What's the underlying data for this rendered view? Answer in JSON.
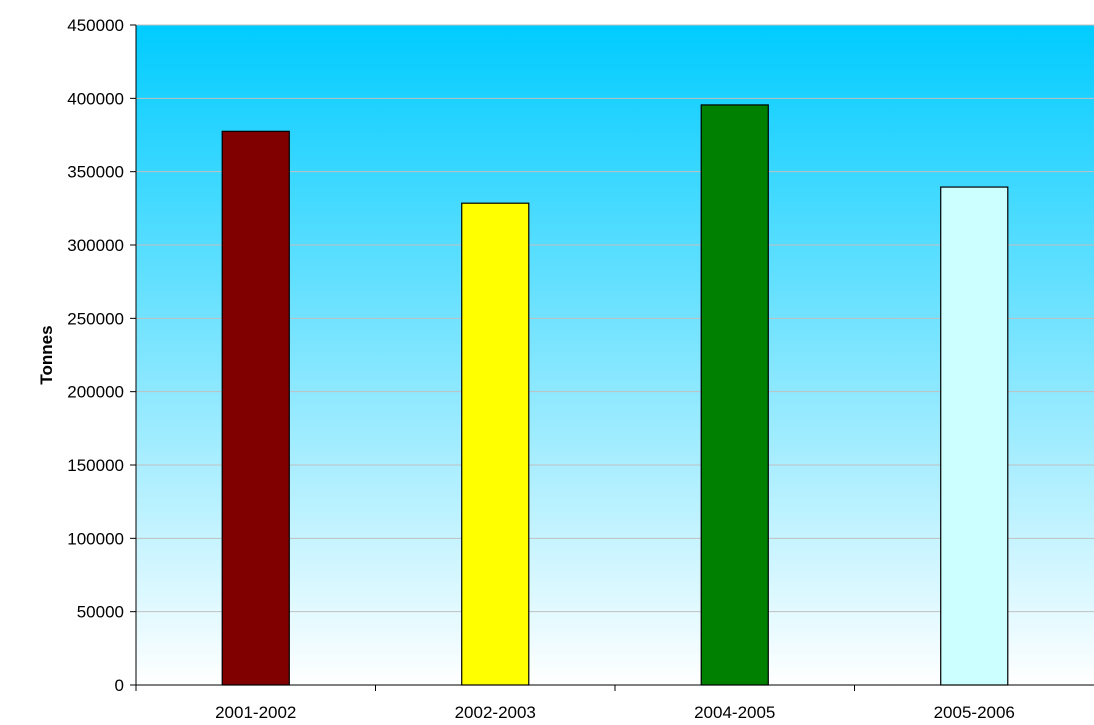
{
  "chart_data": {
    "type": "bar",
    "title": "",
    "xlabel": "",
    "ylabel": "Tonnes",
    "categories": [
      "2001-2002",
      "2002-2003",
      "2004-2005",
      "2005-2006"
    ],
    "values": [
      377500,
      328500,
      395500,
      339500
    ],
    "bar_colors": [
      "#800000",
      "#ffff00",
      "#008000",
      "#ccffff"
    ],
    "ylim": [
      0,
      450000
    ],
    "y_ticks": [
      0,
      50000,
      100000,
      150000,
      200000,
      250000,
      300000,
      350000,
      400000,
      450000
    ],
    "y_tick_labels": [
      "0",
      "50000",
      "100000",
      "150000",
      "200000",
      "250000",
      "300000",
      "350000",
      "400000",
      "450000"
    ],
    "grid": true,
    "legend": "none",
    "background_gradient": [
      "#ffffff",
      "#00ccff"
    ]
  }
}
